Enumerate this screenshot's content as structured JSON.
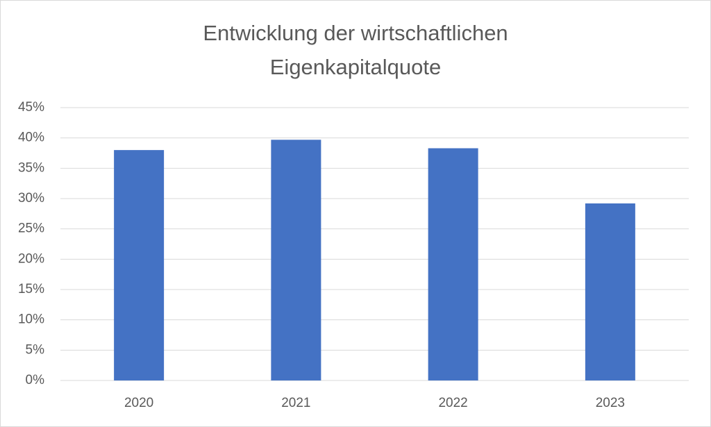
{
  "chart_data": {
    "type": "bar",
    "title": [
      "Entwicklung der wirtschaftlichen",
      "Eigenkapitalquote"
    ],
    "categories": [
      "2020",
      "2021",
      "2022",
      "2023"
    ],
    "values": [
      38.0,
      39.7,
      38.3,
      29.2
    ],
    "color": "#4472c4",
    "ylim": [
      0,
      45
    ],
    "yticks": [
      {
        "value": 0,
        "label": "0%"
      },
      {
        "value": 5,
        "label": "5%"
      },
      {
        "value": 10,
        "label": "10%"
      },
      {
        "value": 15,
        "label": "15%"
      },
      {
        "value": 20,
        "label": "20%"
      },
      {
        "value": 25,
        "label": "25%"
      },
      {
        "value": 30,
        "label": "30%"
      },
      {
        "value": 35,
        "label": "35%"
      },
      {
        "value": 40,
        "label": "40%"
      },
      {
        "value": 45,
        "label": "45%"
      }
    ],
    "grid": true
  }
}
